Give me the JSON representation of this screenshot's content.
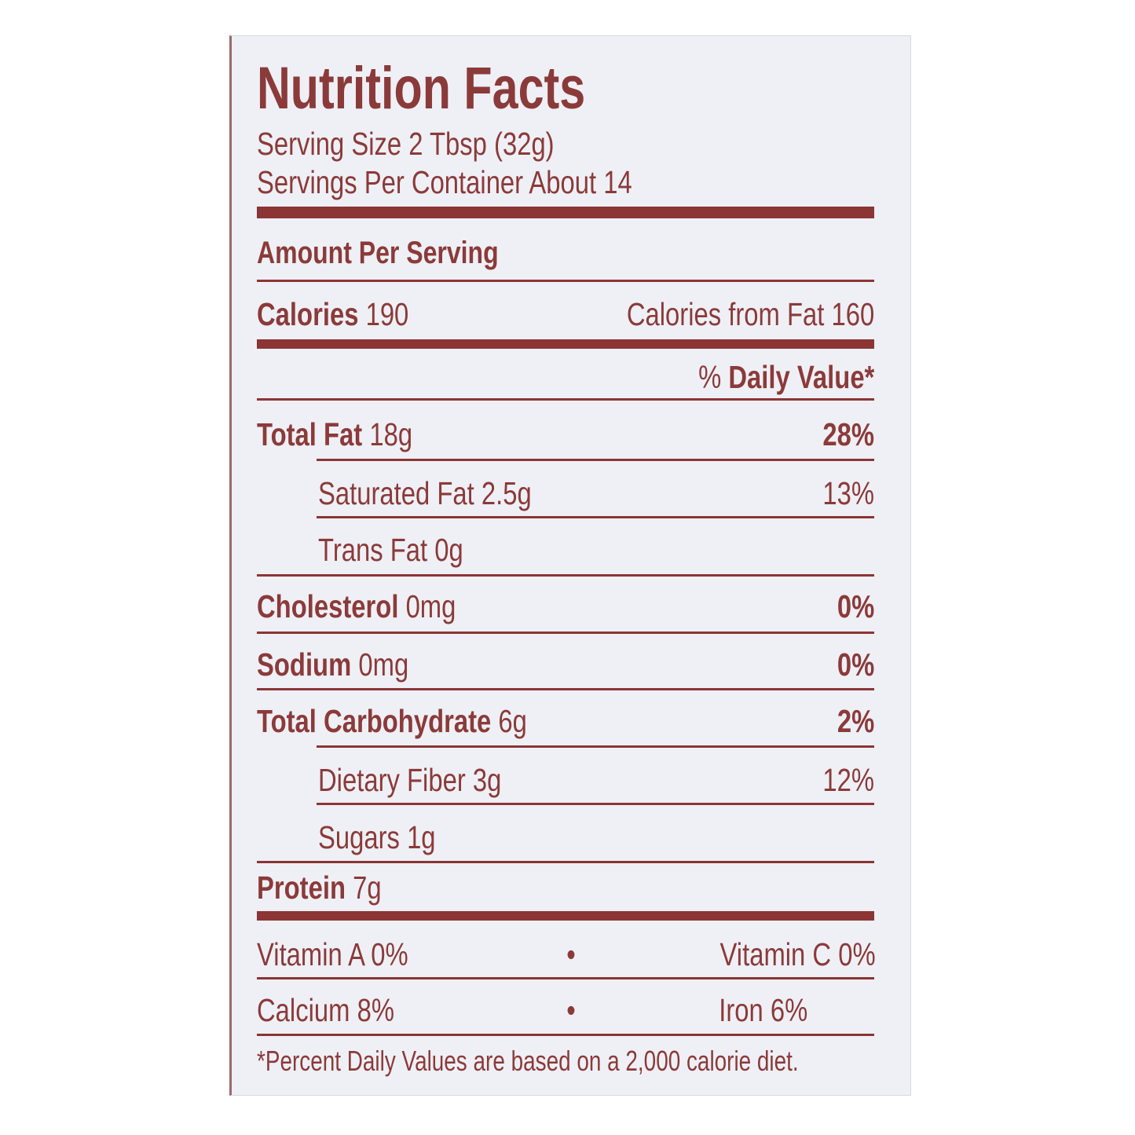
{
  "title": "Nutrition Facts",
  "serving_size": "Serving Size 2 Tbsp (32g)",
  "servings_per_container": "Servings Per Container About 14",
  "amount_per_serving": "Amount Per Serving",
  "calories": {
    "label": "Calories",
    "value": "190",
    "from_fat": "Calories from Fat 160"
  },
  "daily_value_header": {
    "pct": "% ",
    "label": "Daily Value*"
  },
  "nutrients": [
    {
      "label": "Total Fat",
      "amount": "18g",
      "dv": "28%"
    },
    {
      "label": "Saturated Fat",
      "amount": "2.5g",
      "dv": "13%"
    },
    {
      "label": "Trans Fat",
      "amount": "0g",
      "dv": ""
    },
    {
      "label": "Cholesterol",
      "amount": "0mg",
      "dv": "0%"
    },
    {
      "label": "Sodium",
      "amount": "0mg",
      "dv": "0%"
    },
    {
      "label": "Total Carbohydrate",
      "amount": "6g",
      "dv": "2%"
    },
    {
      "label": "Dietary Fiber",
      "amount": "3g",
      "dv": "12%"
    },
    {
      "label": "Sugars",
      "amount": "1g",
      "dv": ""
    },
    {
      "label": "Protein",
      "amount": "7g",
      "dv": ""
    }
  ],
  "vitamins": [
    {
      "left": "Vitamin A 0%",
      "right": "Vitamin C 0%"
    },
    {
      "left": "Calcium 8%",
      "right": "Iron 6%"
    }
  ],
  "separator": "•",
  "footnote": "*Percent Daily Values are based on a 2,000 calorie diet.",
  "colors": {
    "ink": "#8b3a3a",
    "background": "#eef0f5"
  }
}
